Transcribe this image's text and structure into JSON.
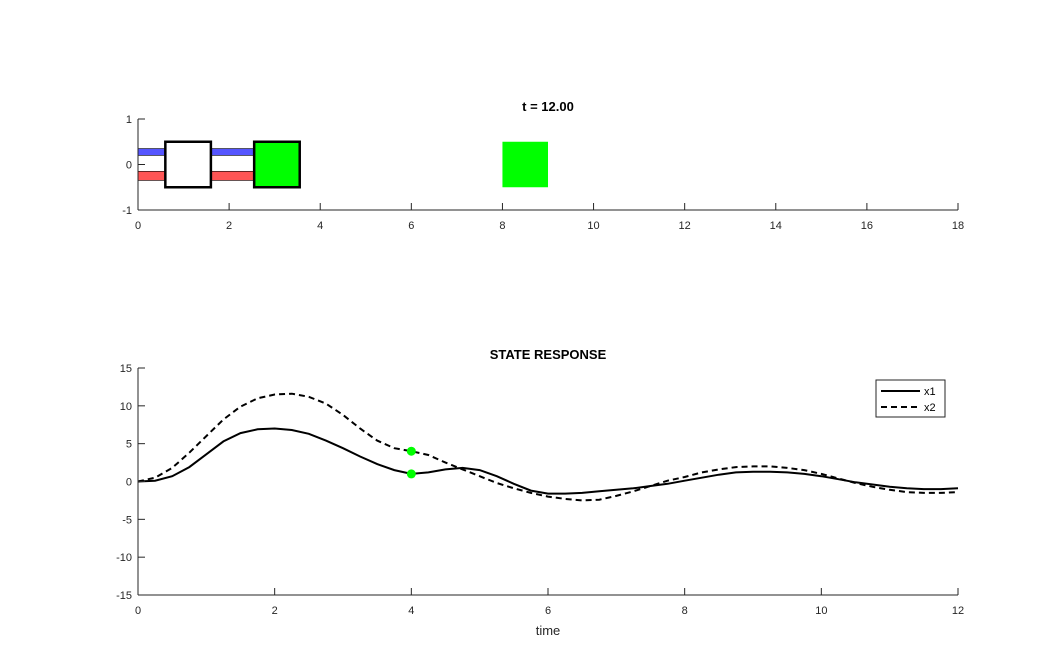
{
  "chart_data": [
    {
      "type": "animation-frame",
      "title": "t = 12.00",
      "xlim": [
        0,
        18
      ],
      "ylim": [
        -1,
        1
      ],
      "xticks": [
        0,
        2,
        4,
        6,
        8,
        10,
        12,
        14,
        16,
        18
      ],
      "yticks": [
        -1,
        0,
        1
      ],
      "shapes": [
        {
          "kind": "bar",
          "x": [
            0,
            2.55
          ],
          "y": [
            0.2,
            0.35
          ],
          "color": "#5555ff"
        },
        {
          "kind": "bar",
          "x": [
            0,
            2.55
          ],
          "y": [
            -0.35,
            -0.15
          ],
          "color": "#ff5555"
        },
        {
          "kind": "box",
          "x": [
            0.6,
            1.6
          ],
          "y": [
            -0.5,
            0.5
          ],
          "fill": "#ffffff",
          "stroke": "#000000"
        },
        {
          "kind": "box",
          "x": [
            2.55,
            3.55
          ],
          "y": [
            -0.5,
            0.5
          ],
          "fill": "#00ff00",
          "stroke": "#000000"
        },
        {
          "kind": "box",
          "x": [
            8.0,
            9.0
          ],
          "y": [
            -0.5,
            0.5
          ],
          "fill": "#00ff00",
          "stroke": "none"
        }
      ]
    },
    {
      "type": "line",
      "title": "STATE RESPONSE",
      "xlabel": "time",
      "ylabel": "",
      "xlim": [
        0,
        12
      ],
      "ylim": [
        -15,
        15
      ],
      "xticks": [
        0,
        2,
        4,
        6,
        8,
        10,
        12
      ],
      "yticks": [
        15,
        10,
        5,
        0,
        -5,
        -10,
        -15
      ],
      "x": [
        0,
        0.25,
        0.5,
        0.75,
        1,
        1.25,
        1.5,
        1.75,
        2,
        2.25,
        2.5,
        2.75,
        3,
        3.25,
        3.5,
        3.75,
        4,
        4.25,
        4.5,
        4.75,
        5,
        5.25,
        5.5,
        5.75,
        6,
        6.25,
        6.5,
        6.75,
        7,
        7.25,
        7.5,
        7.75,
        8,
        8.25,
        8.5,
        8.75,
        9,
        9.25,
        9.5,
        9.75,
        10,
        10.25,
        10.5,
        10.75,
        11,
        11.25,
        11.5,
        11.75,
        12
      ],
      "series": [
        {
          "name": "x1",
          "style": "solid",
          "values": [
            0,
            0.1,
            0.7,
            1.9,
            3.6,
            5.3,
            6.4,
            6.9,
            7.0,
            6.8,
            6.3,
            5.4,
            4.4,
            3.3,
            2.3,
            1.5,
            1.0,
            1.2,
            1.6,
            1.8,
            1.5,
            0.7,
            -0.3,
            -1.2,
            -1.6,
            -1.6,
            -1.5,
            -1.3,
            -1.1,
            -0.9,
            -0.6,
            -0.3,
            0.1,
            0.5,
            0.9,
            1.2,
            1.3,
            1.3,
            1.2,
            1.0,
            0.7,
            0.3,
            -0.1,
            -0.4,
            -0.7,
            -0.9,
            -1.0,
            -1.0,
            -0.9
          ]
        },
        {
          "name": "x2",
          "style": "dashed",
          "values": [
            0,
            0.5,
            1.8,
            3.8,
            6.0,
            8.2,
            9.9,
            11.0,
            11.5,
            11.6,
            11.2,
            10.3,
            8.8,
            7.0,
            5.4,
            4.4,
            4.0,
            3.5,
            2.5,
            1.6,
            0.7,
            -0.2,
            -0.9,
            -1.5,
            -2.0,
            -2.3,
            -2.5,
            -2.4,
            -1.9,
            -1.3,
            -0.6,
            0.1,
            0.6,
            1.2,
            1.6,
            1.9,
            2.0,
            2.0,
            1.8,
            1.5,
            1.0,
            0.4,
            -0.2,
            -0.7,
            -1.1,
            -1.4,
            -1.5,
            -1.5,
            -1.4
          ]
        }
      ],
      "markers": [
        {
          "x": 4,
          "y": 1.0,
          "color": "#00ff00"
        },
        {
          "x": 4,
          "y": 4.0,
          "color": "#00ff00"
        }
      ],
      "legend_position": "top-right"
    }
  ]
}
